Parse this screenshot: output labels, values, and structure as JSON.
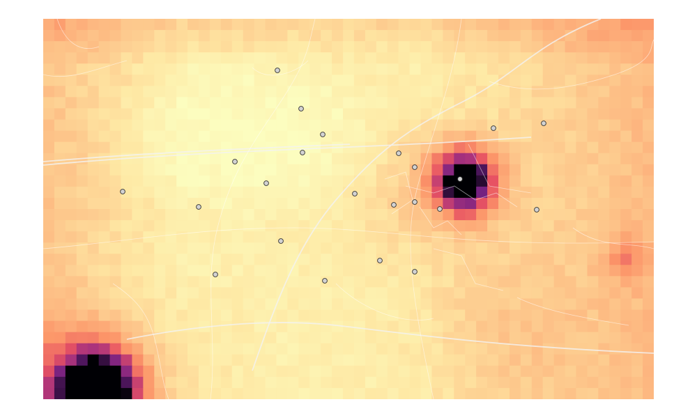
{
  "map": {
    "type": "raster-heatmap",
    "grid": {
      "cols": 55,
      "rows": 34
    },
    "colormap": "magma-light",
    "colors": {
      "low": "#fcfdbf",
      "mid": "#fdae78",
      "high": "#e75263",
      "higher": "#ab337c",
      "max": "#000004",
      "station_fill": "#d2d2d2",
      "station_stroke": "#333333",
      "roads": "#ffffff"
    },
    "hotspots": [
      {
        "name": "northeast-town",
        "col": 37.5,
        "row": 14,
        "strength": 0.9
      },
      {
        "name": "southwest-corner",
        "col": 4.5,
        "row": 32.5,
        "strength": 1.0
      }
    ],
    "stations_count": 24
  }
}
